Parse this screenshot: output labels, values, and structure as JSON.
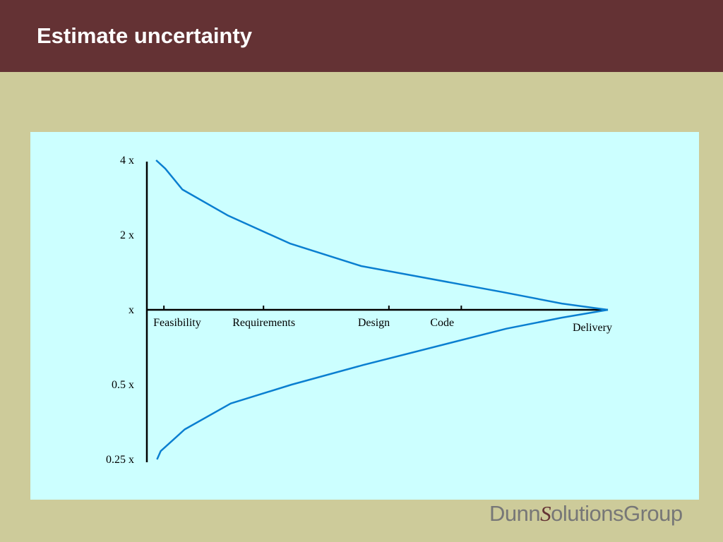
{
  "slide": {
    "title": "Estimate uncertainty",
    "logo": {
      "part1": "Dunn",
      "s": "S",
      "part2": "olutions",
      "part3": "Group"
    }
  },
  "colors": {
    "header": "#643234",
    "background": "#cdcb9a",
    "panel": "#ccffff",
    "curve": "#0a7fd0",
    "axis": "#000000"
  },
  "chart_data": {
    "type": "line",
    "title": "",
    "xlabel": "",
    "ylabel": "",
    "y_scale": "log2",
    "ylim": [
      0.25,
      4
    ],
    "grid": false,
    "legend": "none",
    "y_ticks": [
      {
        "value": 4,
        "label": "4 x"
      },
      {
        "value": 2,
        "label": "2 x"
      },
      {
        "value": 1,
        "label": "x"
      },
      {
        "value": 0.5,
        "label": "0.5 x"
      },
      {
        "value": 0.25,
        "label": "0.25 x"
      }
    ],
    "phases": [
      {
        "label": "Feasibility",
        "t": 0.037
      },
      {
        "label": "Requirements",
        "t": 0.253
      },
      {
        "label": "Design",
        "t": 0.525
      },
      {
        "label": "Code",
        "t": 0.682
      },
      {
        "label": "Delivery",
        "t": 1.0
      }
    ],
    "series": [
      {
        "points": [
          [
            0.02,
            4.0
          ],
          [
            0.04,
            3.7
          ],
          [
            0.077,
            3.05
          ],
          [
            0.175,
            2.4
          ],
          [
            0.31,
            1.85
          ],
          [
            0.465,
            1.5
          ],
          [
            0.77,
            1.18
          ],
          [
            0.9,
            1.06
          ],
          [
            1.0,
            1.0
          ]
        ]
      },
      {
        "points": [
          [
            0.022,
            0.25
          ],
          [
            0.03,
            0.27
          ],
          [
            0.082,
            0.33
          ],
          [
            0.182,
            0.42
          ],
          [
            0.314,
            0.5
          ],
          [
            0.47,
            0.6
          ],
          [
            0.78,
            0.84
          ],
          [
            0.9,
            0.93
          ],
          [
            1.0,
            1.0
          ]
        ]
      }
    ]
  }
}
